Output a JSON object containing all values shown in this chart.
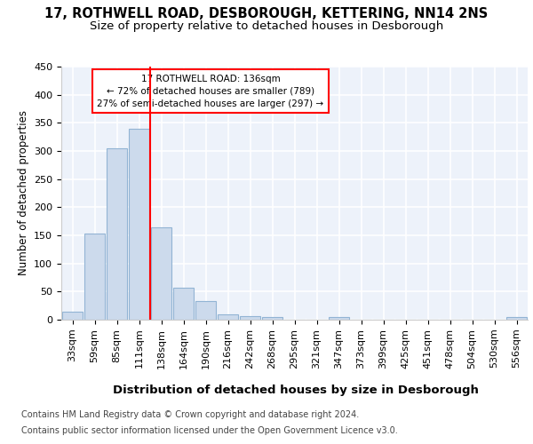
{
  "title1": "17, ROTHWELL ROAD, DESBOROUGH, KETTERING, NN14 2NS",
  "title2": "Size of property relative to detached houses in Desborough",
  "xlabel": "Distribution of detached houses by size in Desborough",
  "ylabel": "Number of detached properties",
  "footnote1": "Contains HM Land Registry data © Crown copyright and database right 2024.",
  "footnote2": "Contains public sector information licensed under the Open Government Licence v3.0.",
  "bar_labels": [
    "33sqm",
    "59sqm",
    "85sqm",
    "111sqm",
    "138sqm",
    "164sqm",
    "190sqm",
    "216sqm",
    "242sqm",
    "268sqm",
    "295sqm",
    "321sqm",
    "347sqm",
    "373sqm",
    "399sqm",
    "425sqm",
    "451sqm",
    "478sqm",
    "504sqm",
    "530sqm",
    "556sqm"
  ],
  "bar_values": [
    15,
    153,
    305,
    340,
    165,
    57,
    33,
    9,
    6,
    4,
    0,
    0,
    5,
    0,
    0,
    0,
    0,
    0,
    0,
    0,
    4
  ],
  "bar_color": "#ccdaec",
  "bar_edgecolor": "#92b4d4",
  "vline_index": 4,
  "annotation_title": "17 ROTHWELL ROAD: 136sqm",
  "annotation_line1": "← 72% of detached houses are smaller (789)",
  "annotation_line2": "27% of semi-detached houses are larger (297) →",
  "annotation_box_facecolor": "white",
  "annotation_box_edgecolor": "red",
  "vline_color": "red",
  "ylim": [
    0,
    450
  ],
  "yticks": [
    0,
    50,
    100,
    150,
    200,
    250,
    300,
    350,
    400,
    450
  ],
  "bg_color": "#edf2fa",
  "grid_color": "white",
  "title1_fontsize": 10.5,
  "title2_fontsize": 9.5,
  "xlabel_fontsize": 9.5,
  "ylabel_fontsize": 8.5,
  "tick_fontsize": 8,
  "annotation_fontsize": 7.5,
  "footnote_fontsize": 7
}
